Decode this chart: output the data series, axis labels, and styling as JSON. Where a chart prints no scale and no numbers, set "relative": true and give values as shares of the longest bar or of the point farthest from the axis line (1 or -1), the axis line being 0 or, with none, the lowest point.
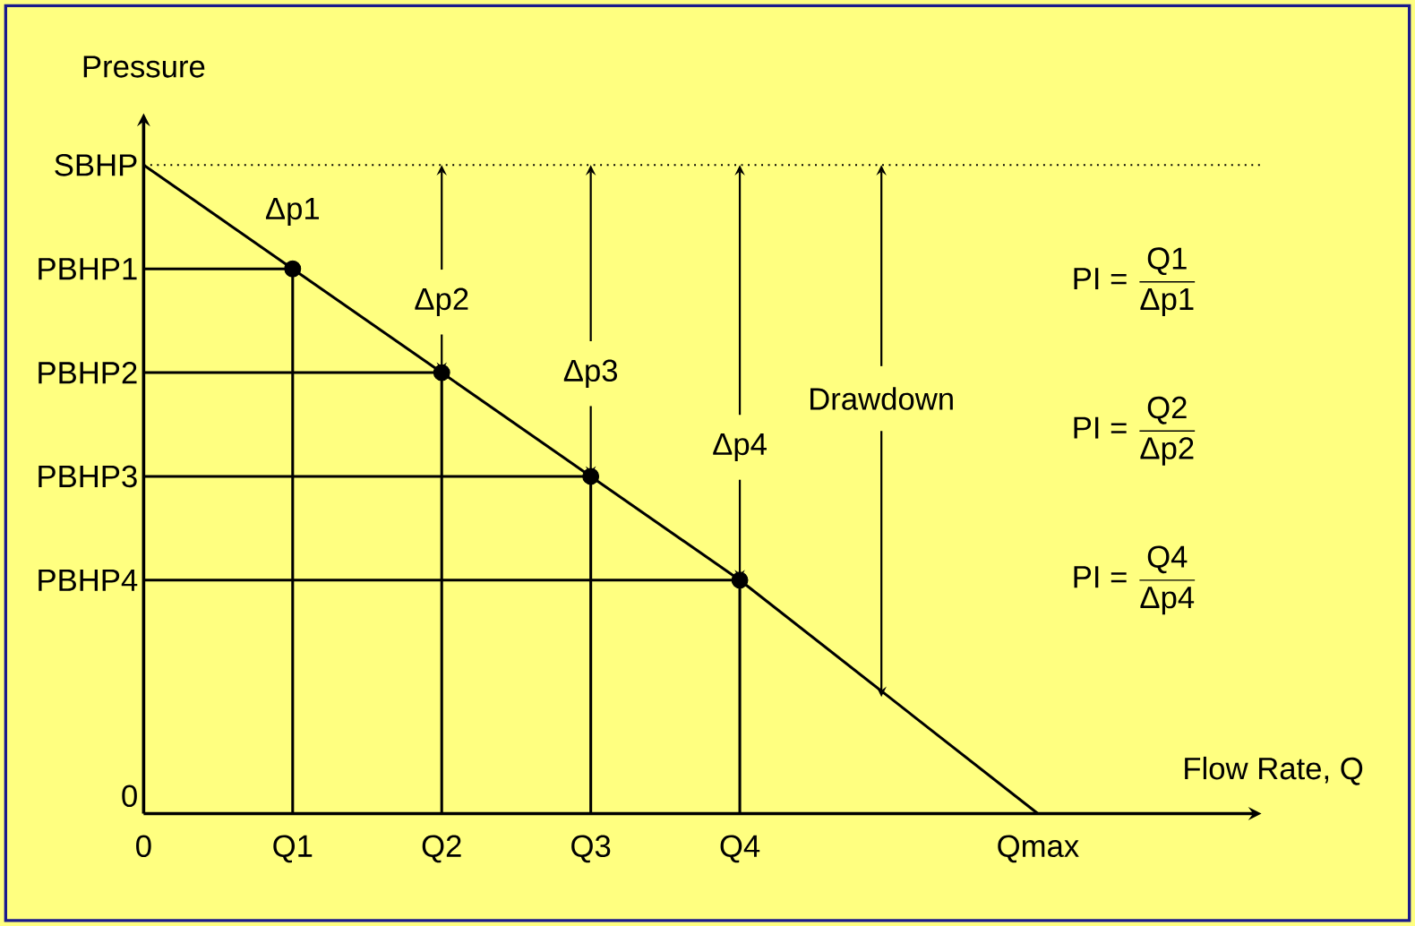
{
  "chart_data": {
    "type": "line",
    "relative": true,
    "xlabel": "Flow Rate, Q",
    "ylabel": "Pressure",
    "categories": [
      "0",
      "Q1",
      "Q2",
      "Q3",
      "Q4",
      null,
      "Qmax"
    ],
    "series": [
      {
        "color": "#000000",
        "values": [
          1,
          0.84,
          0.68,
          0.52,
          0.36,
          0.18,
          0
        ]
      },
      {
        "type": "scatter",
        "marker": "circle",
        "color": "#000000",
        "values": [
          null,
          0.84,
          0.68,
          0.52,
          0.36,
          null,
          null
        ]
      },
      {
        "color": "#000000",
        "x": [
          "0",
          "Q1",
          "Q1"
        ],
        "values": [
          0.84,
          0.84,
          0
        ]
      },
      {
        "color": "#000000",
        "x": [
          "0",
          "Q2",
          "Q2"
        ],
        "values": [
          0.68,
          0.68,
          0
        ]
      },
      {
        "color": "#000000",
        "x": [
          "0",
          "Q3",
          "Q3"
        ],
        "values": [
          0.52,
          0.52,
          0
        ]
      },
      {
        "color": "#000000",
        "x": [
          "0",
          "Q4",
          "Q4"
        ],
        "values": [
          0.36,
          0.36,
          0
        ]
      }
    ],
    "ref_lines": [
      {
        "axis": "y",
        "value": 1,
        "line_style": "dotted",
        "color": "#000000"
      }
    ],
    "annotations": [
      {
        "text": "SBHP",
        "x": "0",
        "y": 1
      },
      {
        "text": "PBHP1",
        "x": "0",
        "y": 0.84
      },
      {
        "text": "PBHP2",
        "x": "0",
        "y": 0.68
      },
      {
        "text": "PBHP3",
        "x": "0",
        "y": 0.52
      },
      {
        "text": "PBHP4",
        "x": "0",
        "y": 0.36
      },
      "0",
      {
        "text": "Δp1",
        "x": "Q1",
        "y": 0.84
      },
      {
        "text": "Δp2",
        "x": "Q2",
        "y": 0.68
      },
      {
        "text": "Δp3",
        "x": "Q3",
        "y": 0.52
      },
      {
        "text": "Δp4",
        "x": "Q4",
        "y": 0.36
      },
      {
        "text": "Drawdown",
        "y": 0.18
      },
      "\\text{PI = }\\frac{\\text{Q1}}{\\text{Δp1}}",
      "\\text{PI = }\\frac{\\text{Q2}}{\\text{Δp2}}",
      "\\text{PI = }\\frac{\\text{Q4}}{\\text{Δp4}}"
    ]
  }
}
